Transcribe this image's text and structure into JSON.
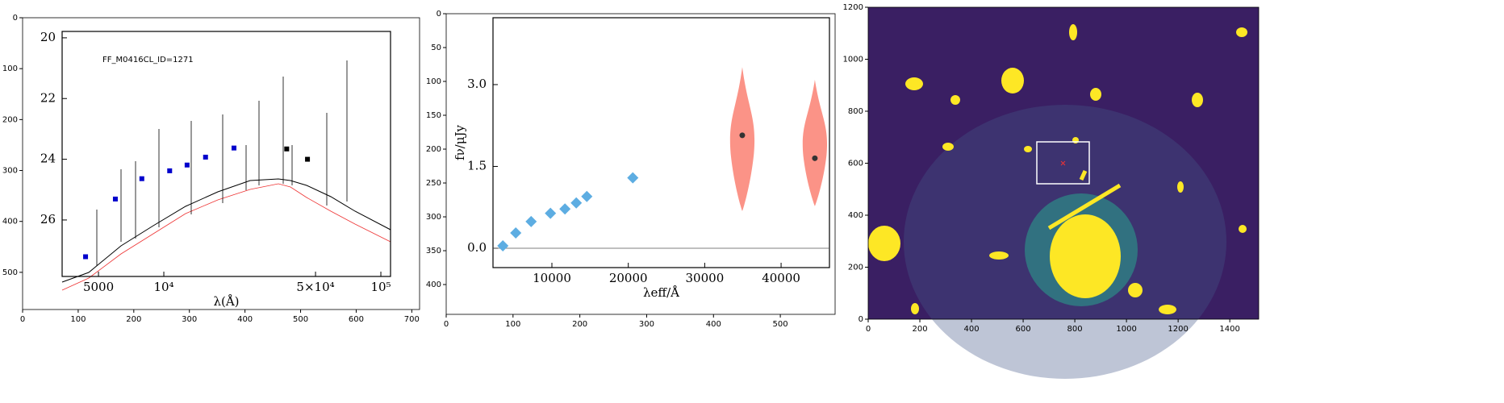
{
  "chart_data": [
    {
      "type": "image",
      "xlim": [
        0,
        714
      ],
      "ylim": [
        573,
        0
      ],
      "xticks": [
        0,
        100,
        200,
        300,
        400,
        500,
        600,
        700
      ],
      "yticks": [
        0,
        100,
        200,
        300,
        400,
        500
      ],
      "inset": {
        "type": "scatter",
        "log_x": true,
        "label": "FF_M0416CL_ID=1271",
        "xlabel": "λ(Å)",
        "xlim": [
          3400,
          110800
        ],
        "ylim": [
          27.86,
          19.79
        ],
        "xticks": [
          5000,
          {
            "value": 10000,
            "label": "10⁴"
          },
          {
            "value": 50000,
            "label": "5×10⁴"
          },
          {
            "value": 100000,
            "label": "10⁵"
          }
        ],
        "yticks": [
          20,
          22,
          24,
          26
        ],
        "series": [
          {
            "color": "#0000cc",
            "marker": "square",
            "x": [
              4360,
              5980,
              7920,
              10640,
              12800,
              15570,
              21050
            ],
            "values": [
              27.21,
              25.31,
              24.64,
              24.38,
              24.19,
              23.93,
              23.63
            ]
          },
          {
            "color": "#000000",
            "marker": "square",
            "x": [
              36830,
              45910
            ],
            "values": [
              23.66,
              24.0
            ]
          }
        ]
      }
    },
    {
      "type": "image",
      "xlim": [
        0,
        582
      ],
      "ylim": [
        444,
        0
      ],
      "xticks": [
        0,
        100,
        200,
        300,
        400,
        500
      ],
      "yticks": [
        0,
        50,
        100,
        150,
        200,
        250,
        300,
        350,
        400
      ],
      "inset": {
        "type": "scatter",
        "xlabel": "λeff/Å",
        "ylabel": "fν/μJy",
        "xlim": [
          2290,
          46330
        ],
        "ylim": [
          -0.355,
          4.226
        ],
        "xticks": [
          10000,
          20000,
          30000,
          40000
        ],
        "yticks": [
          {
            "value": 3,
            "label": "3.0"
          },
          {
            "value": 1.5,
            "label": "1.5"
          },
          {
            "value": 0,
            "label": "0.0"
          }
        ],
        "series": [
          {
            "color": "#5dade2",
            "marker": "diamond",
            "x": [
              3580,
              5270,
              7280,
              9810,
              11710,
              13190,
              14570,
              20590
            ],
            "values": [
              0.044,
              0.28,
              0.49,
              0.64,
              0.72,
              0.83,
              0.95,
              1.29
            ]
          },
          {
            "color": "#333333",
            "marker": "circle",
            "x": [
              34920,
              44420
            ],
            "values": [
              2.07,
              1.65
            ]
          }
        ],
        "violins": {
          "color": "#fa8072",
          "x": [
            34920,
            44420
          ],
          "min": [
            0.68,
            0.77
          ],
          "max": [
            3.32,
            3.09
          ]
        }
      }
    },
    {
      "type": "image",
      "xlim": [
        0,
        1512
      ],
      "ylim": [
        0,
        1200
      ],
      "xticks": [
        0,
        200,
        400,
        600,
        800,
        1000,
        1200,
        1400
      ],
      "yticks": [
        0,
        200,
        400,
        600,
        800,
        1000,
        1200
      ]
    }
  ]
}
